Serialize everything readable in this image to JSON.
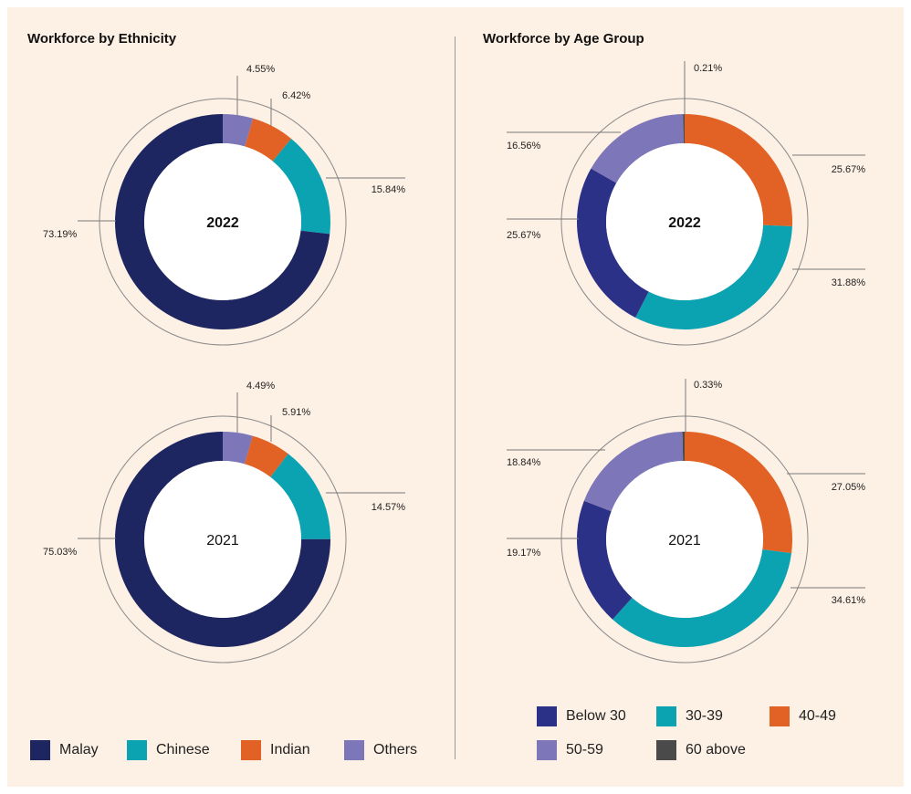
{
  "colors": {
    "malay": "#1d2660",
    "chinese": "#0ba2b2",
    "indian": "#e26124",
    "others": "#7d76b8",
    "below30": "#2c3188",
    "age30_39": "#0ba2b2",
    "age40_49": "#e26124",
    "age50_59": "#7d76b8",
    "age60_above": "#4a4a4a"
  },
  "ethnicity": {
    "title": "Workforce by Ethnicity",
    "legend": [
      {
        "label": "Malay",
        "color": "#1d2660"
      },
      {
        "label": "Chinese",
        "color": "#0ba2b2"
      },
      {
        "label": "Indian",
        "color": "#e26124"
      },
      {
        "label": "Others",
        "color": "#7d76b8"
      }
    ]
  },
  "age": {
    "title": "Workforce by Age Group",
    "legend": [
      {
        "label": "Below 30",
        "color": "#2c3188"
      },
      {
        "label": "30-39",
        "color": "#0ba2b2"
      },
      {
        "label": "40-49",
        "color": "#e26124"
      },
      {
        "label": "50-59",
        "color": "#7d76b8"
      },
      {
        "label": "60 above",
        "color": "#4a4a4a"
      }
    ]
  },
  "chart_data": [
    {
      "type": "pie",
      "group": "Workforce by Ethnicity",
      "center_label": "2022",
      "center_bold": true,
      "slices": [
        {
          "name": "Others",
          "value": 4.55,
          "label": "4.55%",
          "color": "#7d76b8"
        },
        {
          "name": "Indian",
          "value": 6.42,
          "label": "6.42%",
          "color": "#e26124"
        },
        {
          "name": "Chinese",
          "value": 15.84,
          "label": "15.84%",
          "color": "#0ba2b2"
        },
        {
          "name": "Malay",
          "value": 73.19,
          "label": "73.19%",
          "color": "#1d2660"
        }
      ]
    },
    {
      "type": "pie",
      "group": "Workforce by Ethnicity",
      "center_label": "2021",
      "center_bold": false,
      "slices": [
        {
          "name": "Others",
          "value": 4.49,
          "label": "4.49%",
          "color": "#7d76b8"
        },
        {
          "name": "Indian",
          "value": 5.91,
          "label": "5.91%",
          "color": "#e26124"
        },
        {
          "name": "Chinese",
          "value": 14.57,
          "label": "14.57%",
          "color": "#0ba2b2"
        },
        {
          "name": "Malay",
          "value": 75.03,
          "label": "75.03%",
          "color": "#1d2660"
        }
      ]
    },
    {
      "type": "pie",
      "group": "Workforce by Age Group",
      "center_label": "2022",
      "center_bold": true,
      "slices": [
        {
          "name": "40-49",
          "value": 25.67,
          "label": "25.67%",
          "color": "#e26124"
        },
        {
          "name": "30-39",
          "value": 31.88,
          "label": "31.88%",
          "color": "#0ba2b2"
        },
        {
          "name": "Below 30",
          "value": 25.67,
          "label": "25.67%",
          "color": "#2c3188"
        },
        {
          "name": "50-59",
          "value": 16.56,
          "label": "16.56%",
          "color": "#7d76b8"
        },
        {
          "name": "60 above",
          "value": 0.21,
          "label": "0.21%",
          "color": "#4a4a4a"
        }
      ]
    },
    {
      "type": "pie",
      "group": "Workforce by Age Group",
      "center_label": "2021",
      "center_bold": false,
      "slices": [
        {
          "name": "40-49",
          "value": 27.05,
          "label": "27.05%",
          "color": "#e26124"
        },
        {
          "name": "30-39",
          "value": 34.61,
          "label": "34.61%",
          "color": "#0ba2b2"
        },
        {
          "name": "Below 30",
          "value": 19.17,
          "label": "19.17%",
          "color": "#2c3188"
        },
        {
          "name": "50-59",
          "value": 18.84,
          "label": "18.84%",
          "color": "#7d76b8"
        },
        {
          "name": "60 above",
          "value": 0.33,
          "label": "0.33%",
          "color": "#4a4a4a"
        }
      ]
    }
  ]
}
